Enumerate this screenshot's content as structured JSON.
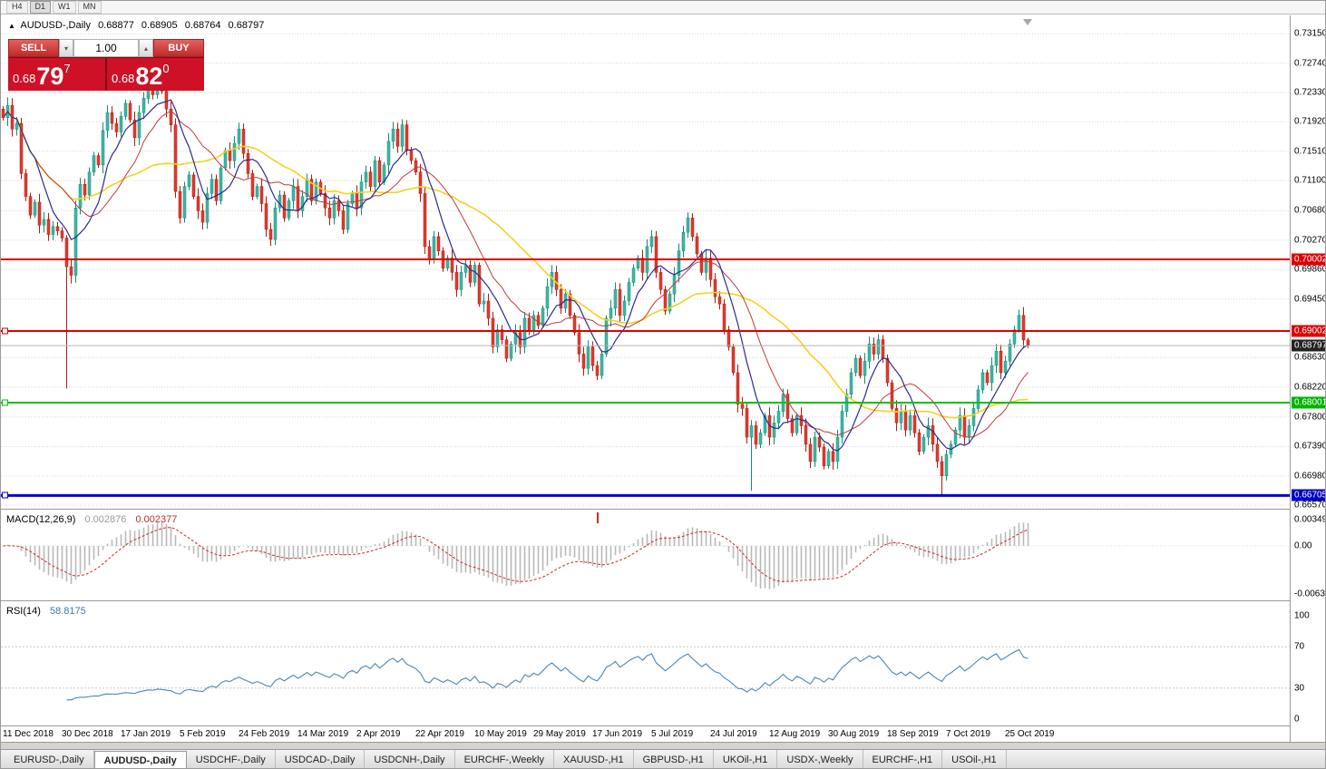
{
  "toolbar": {
    "periods": [
      {
        "label": "H4",
        "active": false
      },
      {
        "label": "D1",
        "active": true
      },
      {
        "label": "W1",
        "active": false
      },
      {
        "label": "MN",
        "active": false
      }
    ]
  },
  "chart_header": {
    "icon": "▲",
    "title": "AUDUSD-,Daily",
    "open": "0.68877",
    "high": "0.68905",
    "low": "0.68764",
    "close": "0.68797"
  },
  "trade_panel": {
    "sell_label": "SELL",
    "buy_label": "BUY",
    "volume": "1.00",
    "volume_down_icon": "▾",
    "volume_up_icon": "▴",
    "sell_price": {
      "prefix": "0.68",
      "big": "79",
      "sup": "7"
    },
    "buy_price": {
      "prefix": "0.68",
      "big": "82",
      "sup": "0"
    }
  },
  "price_scale": {
    "ticks": [
      "0.73150",
      "0.72740",
      "0.72330",
      "0.71920",
      "0.71510",
      "0.71100",
      "0.70680",
      "0.70270",
      "0.69860",
      "0.69450",
      "0.68630",
      "0.68220",
      "0.67800",
      "0.67390",
      "0.66980",
      "0.66570"
    ]
  },
  "levels": [
    {
      "value": "0.70002",
      "price": 0.70002,
      "color": "red",
      "width": 2,
      "handle": false
    },
    {
      "value": "0.69002",
      "price": 0.69002,
      "color": "red",
      "width": 2,
      "handle": true
    },
    {
      "value": "0.68001",
      "price": 0.68001,
      "color": "green",
      "width": 2,
      "handle": true
    },
    {
      "value": "0.66705",
      "price": 0.66705,
      "color": "blue",
      "width": 3,
      "handle": true
    }
  ],
  "current_price": {
    "value": "0.68797",
    "price": 0.68797
  },
  "macd_panel": {
    "label": "MACD(12,26,9)",
    "value_main": "0.002876",
    "value_signal": "0.002377",
    "scale": [
      "0.00349",
      "0.00",
      "-0.00637"
    ]
  },
  "rsi_panel": {
    "label": "RSI(14)",
    "value": "58.8175",
    "scale": [
      "100",
      "70",
      "30",
      "0"
    ],
    "levels": [
      70,
      30
    ]
  },
  "dates": [
    "11 Dec 2018",
    "30 Dec 2018",
    "17 Jan 2019",
    "5 Feb 2019",
    "24 Feb 2019",
    "14 Mar 2019",
    "2 Apr 2019",
    "22 Apr 2019",
    "10 May 2019",
    "29 May 2019",
    "17 Jun 2019",
    "5 Jul 2019",
    "24 Jul 2019",
    "12 Aug 2019",
    "30 Aug 2019",
    "18 Sep 2019",
    "7 Oct 2019",
    "25 Oct 2019"
  ],
  "tabs": [
    {
      "label": "EURUSD-,Daily",
      "active": false
    },
    {
      "label": "AUDUSD-,Daily",
      "active": true
    },
    {
      "label": "USDCHF-,Daily",
      "active": false
    },
    {
      "label": "USDCAD-,Daily",
      "active": false
    },
    {
      "label": "USDCNH-,Daily",
      "active": false
    },
    {
      "label": "EURCHF-,Weekly",
      "active": false
    },
    {
      "label": "XAUUSD-,H1",
      "active": false
    },
    {
      "label": "GBPUSD-,H1",
      "active": false
    },
    {
      "label": "UKOil-,H1",
      "active": false
    },
    {
      "label": "USDX-,Weekly",
      "active": false
    },
    {
      "label": "EURCHF-,H1",
      "active": false
    },
    {
      "label": "USOil-,H1",
      "active": false
    }
  ],
  "colors": {
    "up": "#3cb8a5",
    "up_border": "#128b79",
    "down": "#e33a2c",
    "down_border": "#aa1d12",
    "ma_fast": "#2b2b8f",
    "ma_mid": "#c03a3a",
    "ma_slow": "#f2d21f",
    "macd_hist": "#b8b8b8",
    "macd_signal": "#cc2a2a",
    "rsi_line": "#4a86b8",
    "line_red": "#e00000",
    "line_green": "#00c000",
    "line_blue": "#0000d0",
    "badge_red": "#e00000",
    "badge_green": "#00b400",
    "badge_blue": "#0000cc",
    "badge_black": "#222222",
    "grid": "#d8d8d8"
  },
  "chart_data": {
    "type": "candlestick",
    "symbol": "AUDUSD",
    "timeframe": "Daily",
    "title": "AUDUSD-,Daily",
    "y_axis": {
      "min": 0.6657,
      "max": 0.7315
    },
    "last_ohlc": {
      "open": 0.68877,
      "high": 0.68905,
      "low": 0.68764,
      "close": 0.68797
    },
    "closes": [
      0.7198,
      0.7215,
      0.7182,
      0.719,
      0.712,
      0.7088,
      0.7062,
      0.708,
      0.7048,
      0.7056,
      0.7035,
      0.7046,
      0.704,
      0.703,
      0.699,
      0.6978,
      0.7072,
      0.7105,
      0.709,
      0.7122,
      0.7145,
      0.7132,
      0.718,
      0.7205,
      0.719,
      0.7178,
      0.72,
      0.7218,
      0.7195,
      0.717,
      0.7205,
      0.7225,
      0.7242,
      0.723,
      0.7248,
      0.7235,
      0.721,
      0.7188,
      0.7095,
      0.7058,
      0.7102,
      0.7118,
      0.7088,
      0.7068,
      0.7052,
      0.7092,
      0.7112,
      0.7082,
      0.7128,
      0.7152,
      0.7138,
      0.7162,
      0.7182,
      0.7148,
      0.712,
      0.7088,
      0.7102,
      0.7078,
      0.7042,
      0.7028,
      0.7072,
      0.709,
      0.7058,
      0.7082,
      0.7102,
      0.7068,
      0.7088,
      0.7112,
      0.7082,
      0.7108,
      0.7092,
      0.7072,
      0.7058,
      0.7082,
      0.7068,
      0.7042,
      0.7078,
      0.7092,
      0.7072,
      0.7108,
      0.7122,
      0.7102,
      0.7138,
      0.7108,
      0.7132,
      0.7165,
      0.7182,
      0.7158,
      0.7188,
      0.7152,
      0.7138,
      0.7122,
      0.7092,
      0.7018,
      0.7002,
      0.7032,
      0.7012,
      0.6988,
      0.7002,
      0.6982,
      0.6958,
      0.6982,
      0.6992,
      0.6968,
      0.6992,
      0.6938,
      0.6942,
      0.6918,
      0.6878,
      0.6902,
      0.6888,
      0.6862,
      0.6882,
      0.6898,
      0.6878,
      0.6918,
      0.6902,
      0.6922,
      0.6908,
      0.6932,
      0.6962,
      0.6982,
      0.6958,
      0.6932,
      0.6952,
      0.6922,
      0.6898,
      0.6868,
      0.6848,
      0.6878,
      0.6852,
      0.6838,
      0.6868,
      0.6918,
      0.6932,
      0.6958,
      0.6922,
      0.6942,
      0.6968,
      0.6988,
      0.7002,
      0.6982,
      0.7018,
      0.7032,
      0.6982,
      0.6958,
      0.6928,
      0.6952,
      0.6978,
      0.7012,
      0.7038,
      0.7058,
      0.7032,
      0.7008,
      0.6982,
      0.7002,
      0.6972,
      0.6948,
      0.6938,
      0.6902,
      0.6878,
      0.6842,
      0.6798,
      0.6792,
      0.6752,
      0.6768,
      0.6742,
      0.6758,
      0.6782,
      0.6752,
      0.6772,
      0.6788,
      0.6812,
      0.6778,
      0.6758,
      0.6782,
      0.6768,
      0.6742,
      0.6718,
      0.6752,
      0.6738,
      0.6712,
      0.6732,
      0.6718,
      0.6752,
      0.6788,
      0.6812,
      0.6842,
      0.6862,
      0.6838,
      0.6858,
      0.6882,
      0.6868,
      0.6888,
      0.6862,
      0.6828,
      0.6792,
      0.6772,
      0.6788,
      0.6762,
      0.6782,
      0.6758,
      0.6732,
      0.6752,
      0.6768,
      0.6742,
      0.6718,
      0.6698,
      0.6728,
      0.6742,
      0.6762,
      0.6782,
      0.6752,
      0.6768,
      0.6792,
      0.6818,
      0.6842,
      0.6828,
      0.6852,
      0.6872,
      0.6842,
      0.6858,
      0.6882,
      0.6902,
      0.6922,
      0.68877,
      0.68797
    ],
    "wick_overrides": {
      "14": {
        "low": 0.682
      },
      "165": {
        "low": 0.6677
      },
      "207": {
        "low": 0.667
      },
      "224": {
        "high": 0.693
      },
      "226": {
        "high": 0.68905,
        "low": 0.68764
      }
    },
    "indicators": [
      {
        "name": "MACD",
        "params": "12,26,9",
        "main_value": 0.002876,
        "signal_value": 0.002377
      },
      {
        "name": "RSI",
        "params": "14",
        "value": 58.8175
      },
      {
        "name": "moving-averages",
        "colors": [
          "navy",
          "red",
          "yellow"
        ]
      }
    ],
    "horizontal_levels": [
      0.70002,
      0.69002,
      0.68001,
      0.66705
    ]
  }
}
